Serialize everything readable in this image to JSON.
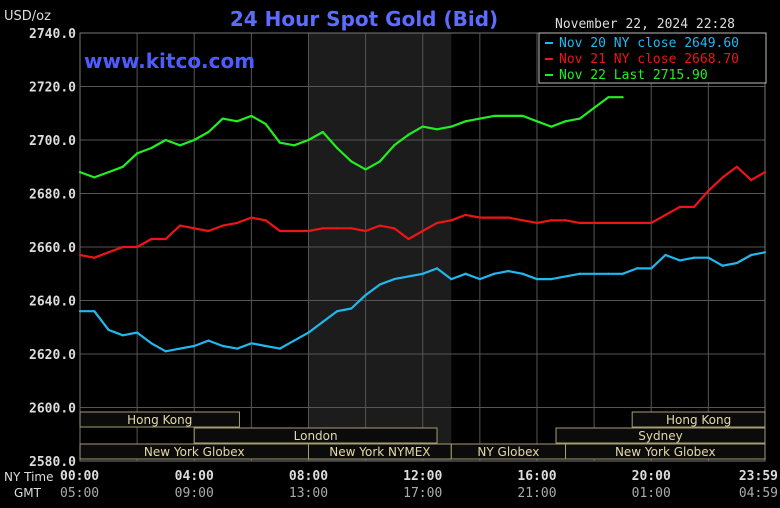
{
  "chart_data": {
    "type": "line",
    "title": "24 Hour Spot Gold (Bid)",
    "ylabel": "USD/oz",
    "site": "www.kitco.com",
    "timestamp": "November 22, 2024 22:28",
    "ylim": [
      2580,
      2740
    ],
    "yticks": [
      "2740.0",
      "2720.0",
      "2700.0",
      "2680.0",
      "2660.0",
      "2640.0",
      "2620.0",
      "2600.0",
      "2580.0"
    ],
    "xlim": [
      0,
      1439
    ],
    "ny_time_label": "NY Time",
    "gmt_label": "GMT",
    "ny_ticks": [
      "00:00",
      "04:00",
      "08:00",
      "12:00",
      "16:00",
      "20:00",
      "23:59"
    ],
    "gmt_ticks": [
      "05:00",
      "09:00",
      "13:00",
      "17:00",
      "21:00",
      "01:00",
      "04:59"
    ],
    "grid": true,
    "legend_position": "top-right",
    "colors": {
      "background": "#000000",
      "grid": "#555555",
      "axis_text": "#dddddd",
      "title": "#5b6cff",
      "site": "#4d5cff",
      "shade": "#1c1c1c",
      "session_box_fill": "#0b0b0b",
      "session_box_border": "#a89c70",
      "session_text": "#e4d9a6"
    },
    "series": [
      {
        "name": "Nov 20 NY close 2649.60",
        "color": "#21b8ee",
        "x": [
          0,
          30,
          60,
          90,
          120,
          150,
          180,
          210,
          240,
          270,
          300,
          330,
          360,
          390,
          420,
          450,
          480,
          510,
          540,
          570,
          600,
          630,
          660,
          690,
          720,
          750,
          780,
          810,
          840,
          870,
          900,
          930,
          960,
          990,
          1020,
          1050,
          1080,
          1110,
          1140,
          1170,
          1200,
          1230,
          1260,
          1290,
          1320,
          1350,
          1380,
          1410,
          1439
        ],
        "values": [
          2636,
          2636,
          2629,
          2627,
          2628,
          2624,
          2621,
          2622,
          2623,
          2625,
          2623,
          2622,
          2624,
          2623,
          2622,
          2625,
          2628,
          2632,
          2636,
          2637,
          2642,
          2646,
          2648,
          2649,
          2650,
          2652,
          2648,
          2650,
          2648,
          2650,
          2651,
          2650,
          2648,
          2648,
          2649,
          2650,
          2650,
          2650,
          2650,
          2652,
          2652,
          2657,
          2655,
          2656,
          2656,
          2653,
          2654,
          2657,
          2658
        ]
      },
      {
        "name": "Nov 21 NY close 2668.70",
        "color": "#ee1515",
        "x": [
          0,
          30,
          60,
          90,
          120,
          150,
          180,
          210,
          240,
          270,
          300,
          330,
          360,
          390,
          420,
          450,
          480,
          510,
          540,
          570,
          600,
          630,
          660,
          690,
          720,
          750,
          780,
          810,
          840,
          870,
          900,
          930,
          960,
          990,
          1020,
          1050,
          1080,
          1110,
          1140,
          1170,
          1200,
          1230,
          1260,
          1290,
          1320,
          1350,
          1380,
          1410,
          1439
        ],
        "values": [
          2657,
          2656,
          2658,
          2660,
          2660,
          2663,
          2663,
          2668,
          2667,
          2666,
          2668,
          2669,
          2671,
          2670,
          2666,
          2666,
          2666,
          2667,
          2667,
          2667,
          2666,
          2668,
          2667,
          2663,
          2666,
          2669,
          2670,
          2672,
          2671,
          2671,
          2671,
          2670,
          2669,
          2670,
          2670,
          2669,
          2669,
          2669,
          2669,
          2669,
          2669,
          2672,
          2675,
          2675,
          2681,
          2686,
          2690,
          2685,
          2688
        ]
      },
      {
        "name": "Nov 22 Last 2715.90",
        "color": "#22ee22",
        "x": [
          0,
          30,
          60,
          90,
          120,
          150,
          180,
          210,
          240,
          270,
          300,
          330,
          360,
          390,
          420,
          450,
          480,
          510,
          540,
          570,
          600,
          630,
          660,
          690,
          720,
          750,
          780,
          810,
          840,
          870,
          900,
          930,
          960,
          990,
          1020,
          1050,
          1080,
          1110,
          1140
        ],
        "values": [
          2688,
          2686,
          2688,
          2690,
          2695,
          2697,
          2700,
          2698,
          2700,
          2703,
          2708,
          2707,
          2709,
          2706,
          2699,
          2698,
          2700,
          2703,
          2697,
          2692,
          2689,
          2692,
          2698,
          2702,
          2705,
          2704,
          2705,
          2707,
          2708,
          2709,
          2709,
          2709,
          2707,
          2705,
          2707,
          2708,
          2712,
          2716,
          2716
        ]
      }
    ],
    "sessions": [
      {
        "label": "Hong Kong",
        "start": 0,
        "end": 335,
        "row": 0
      },
      {
        "label": "Hong Kong",
        "start": 1160,
        "end": 1439,
        "row": 0
      },
      {
        "label": "London",
        "start": 240,
        "end": 750,
        "row": 1
      },
      {
        "label": "Sydney",
        "start": 1000,
        "end": 1439,
        "row": 1
      },
      {
        "label": "New York Globex",
        "start": 0,
        "end": 480,
        "row": 2
      },
      {
        "label": "New York NYMEX",
        "start": 480,
        "end": 780,
        "row": 2
      },
      {
        "label": "NY Globex",
        "start": 780,
        "end": 1020,
        "row": 2
      },
      {
        "label": "New York Globex",
        "start": 1020,
        "end": 1439,
        "row": 2
      }
    ],
    "shaded_range": [
      480,
      780
    ]
  }
}
